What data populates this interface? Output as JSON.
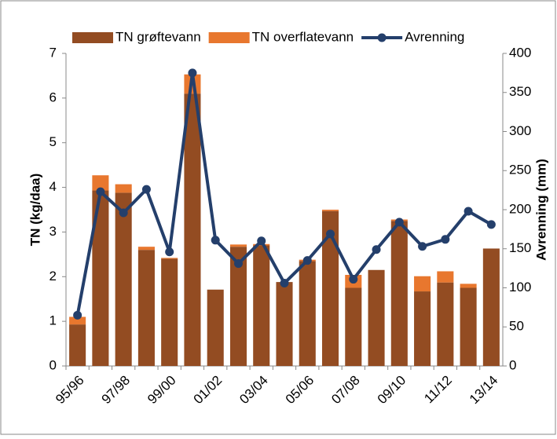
{
  "chart_data": {
    "type": "bar_line",
    "categories": [
      "95/96",
      null,
      "97/98",
      null,
      "99/00",
      null,
      "01/02",
      null,
      "03/04",
      null,
      "05/06",
      null,
      "07/08",
      null,
      "09/10",
      null,
      "11/12",
      null,
      "13/14"
    ],
    "series": [
      {
        "name": "TN grøftevann",
        "color": "#934c22",
        "kind": "bar",
        "values": [
          0.93,
          3.93,
          3.88,
          2.6,
          2.4,
          6.1,
          1.71,
          2.67,
          2.7,
          1.88,
          2.35,
          3.47,
          1.75,
          2.15,
          3.25,
          1.67,
          1.87,
          1.75,
          2.63
        ]
      },
      {
        "name": "TN overflatevann",
        "color": "#e8772e",
        "kind": "bar",
        "values": [
          0.17,
          0.34,
          0.19,
          0.07,
          0.02,
          0.43,
          0,
          0.05,
          0.03,
          0,
          0.03,
          0.03,
          0.29,
          0,
          0.03,
          0.34,
          0.25,
          0.09,
          0
        ]
      },
      {
        "name": "Avrenning",
        "color": "#243f6b",
        "kind": "line",
        "axis": "y2",
        "values": [
          65,
          223,
          196,
          226,
          146,
          375,
          161,
          131,
          160,
          106,
          135,
          169,
          111,
          149,
          184,
          153,
          162,
          198,
          181
        ]
      }
    ],
    "ylabel": "TN (kg/daa)",
    "y2label": "Avrenning (mm)",
    "ylim": [
      0,
      7
    ],
    "yticks": [
      0,
      1,
      2,
      3,
      4,
      5,
      6,
      7
    ],
    "y2lim": [
      0,
      400
    ],
    "y2ticks": [
      0,
      50,
      100,
      150,
      200,
      250,
      300,
      350,
      400
    ]
  }
}
